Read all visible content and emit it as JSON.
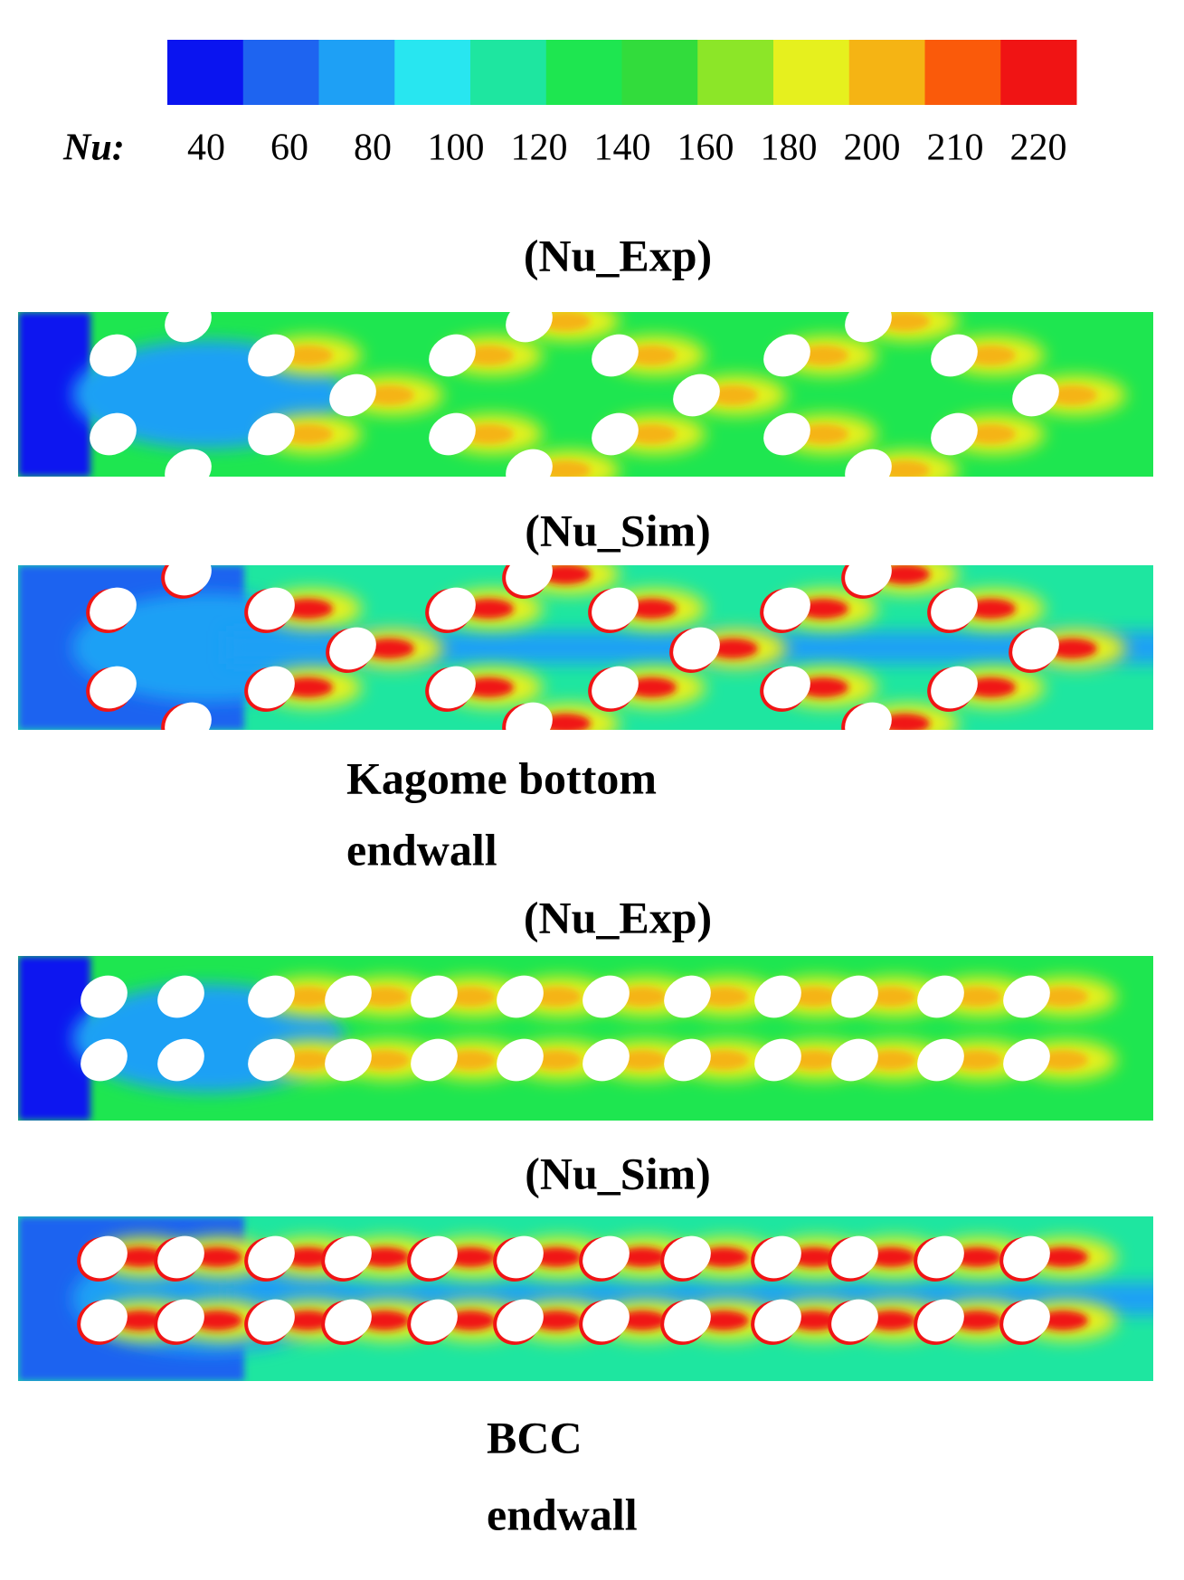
{
  "colorbar": {
    "label": "Nu:",
    "colors": [
      "#0a14f0",
      "#1e64f0",
      "#1ea0f5",
      "#28e6f0",
      "#1ee6a0",
      "#1ee650",
      "#32dc3c",
      "#8ce628",
      "#e6f01e",
      "#f5b414",
      "#fa5a0a",
      "#f01414"
    ],
    "ticks": [
      40,
      60,
      80,
      100,
      120,
      140,
      160,
      180,
      200,
      210,
      220
    ]
  },
  "panels": [
    {
      "title": "(Nu_Exp)"
    },
    {
      "title": "(Nu_Sim)"
    },
    {
      "title": "(Nu_Exp)"
    },
    {
      "title": "(Nu_Sim)"
    }
  ],
  "captions": [
    {
      "lines": [
        "Kagome bottom",
        "endwall"
      ]
    },
    {
      "lines": [
        "BCC",
        "endwall"
      ]
    }
  ]
}
